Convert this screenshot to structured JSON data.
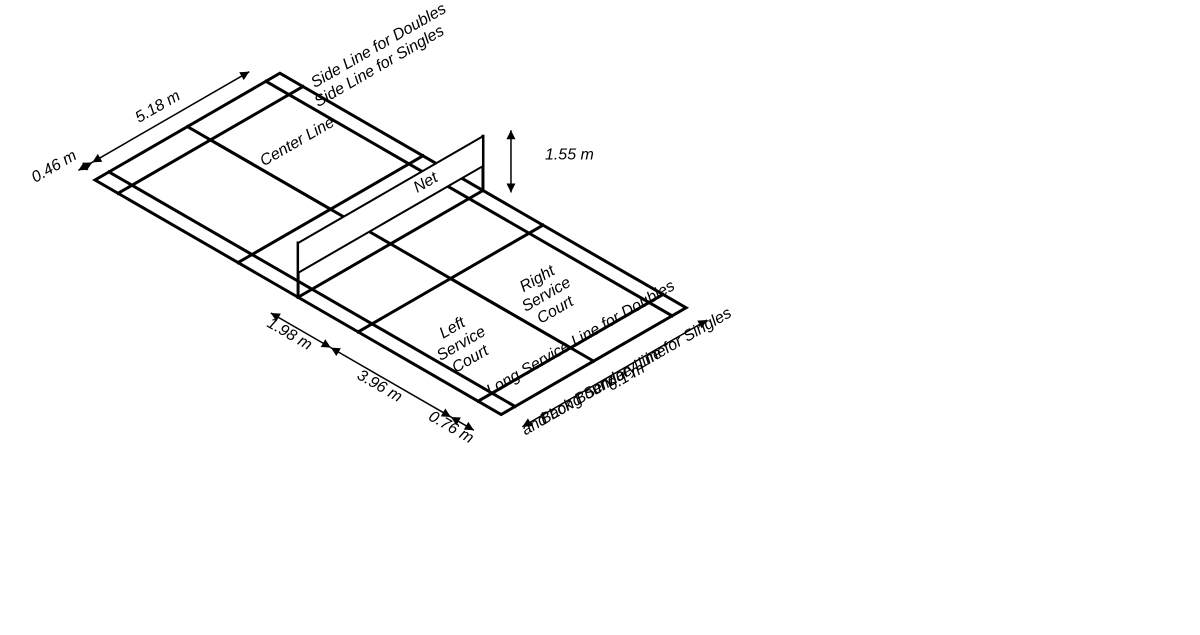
{
  "diagram": {
    "type": "isometric-court",
    "background_color": "#ffffff",
    "line_color": "#000000",
    "line_width": 3,
    "label_font_family": "Arial, Helvetica, sans-serif",
    "label_font_size": 16,
    "label_font_style_italic": "italic",
    "label_color": "#000000",
    "arrow_line_width": 1.5,
    "labels": {
      "side_doubles": "Side Line for Doubles",
      "side_singles": "Side Line for Singles",
      "center_line": "Center Line",
      "net": "Net",
      "right_service": "Right\nService\nCourt",
      "left_service": "Left\nService\nCourt",
      "long_service_doubles": "Long Service Line for Doubles",
      "back_boundary_1": "Back Boundary Line",
      "back_boundary_2": "and Long Service Line for Singles"
    },
    "dimensions": {
      "d_518": "5.18 m",
      "d_046": "0.46 m",
      "d_155": "1.55 m",
      "d_198": "1.98 m",
      "d_396": "3.96 m",
      "d_076": "0.76 m",
      "d_61": "6.1 m"
    },
    "geometry_note": "Isometric (oblique) rendering of a badminton court. 3D corners listed below are in a right-handed X (long axis, 13.4 m), Y (width, 6.1 m), Z (height) system, then projected with scale ~35 px/m and basis vectors ex=(+0.866,-0.5)*s, ey=(+0.866,+0.5)*s, ez=(0,-1)*s, origin mapped to screen (95,185).",
    "court_3d": {
      "length": 13.4,
      "width": 6.1,
      "singles_inset": 0.46,
      "back_doubles_inset_from_baseline": 0.76,
      "short_service_from_net": 1.98,
      "net_height": 1.55
    }
  }
}
